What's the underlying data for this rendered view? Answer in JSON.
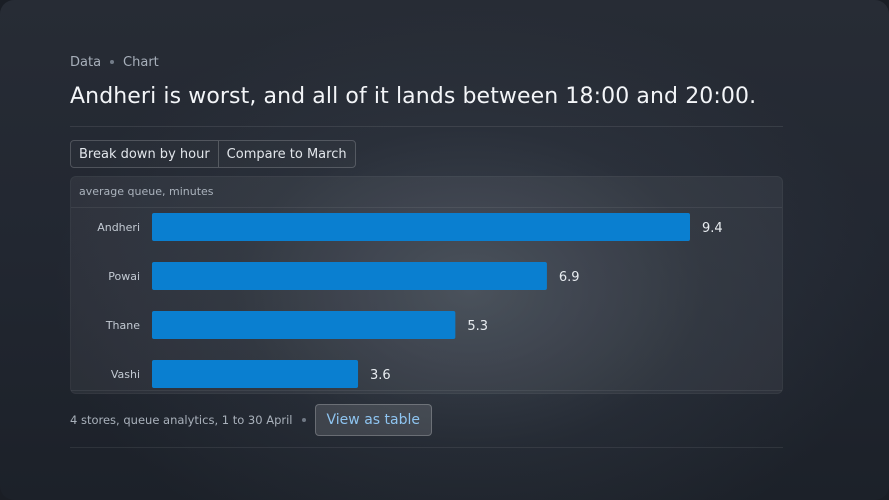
{
  "breadcrumb": {
    "items": [
      "Data",
      "Chart"
    ]
  },
  "title": "Andheri is worst, and all of it lands between 18:00 and 20:00.",
  "actions": {
    "breakdown_label": "Break down by hour",
    "compare_label": "Compare to March"
  },
  "colors": {
    "bar": "#0a7fd0",
    "accent_text": "#8ec4f0"
  },
  "chart_data": {
    "type": "bar",
    "orientation": "horizontal",
    "title": "",
    "xlabel": "",
    "ylabel": "average queue, minutes",
    "categories": [
      "Andheri",
      "Powai",
      "Thane",
      "Vashi"
    ],
    "values": [
      9.4,
      6.9,
      5.3,
      3.6
    ],
    "value_labels": [
      "9.4",
      "6.9",
      "5.3",
      "3.6"
    ],
    "xlim": [
      0,
      9.4
    ],
    "grid": false,
    "legend": "none"
  },
  "footer": {
    "caption": "4 stores, queue analytics, 1 to 30 April",
    "view_table_label": "View as table"
  }
}
